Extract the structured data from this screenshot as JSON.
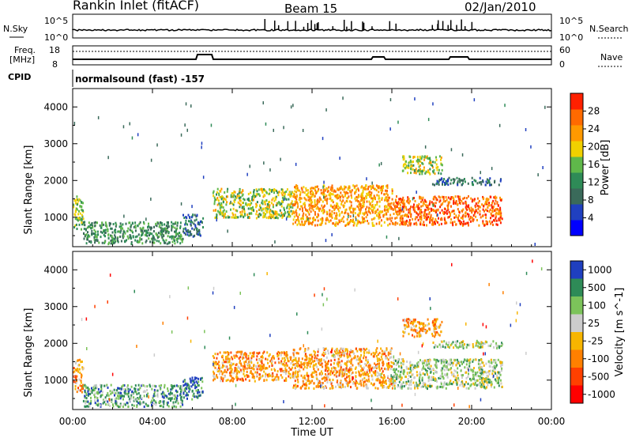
{
  "header": {
    "station": "Rankin Inlet (fitACF)",
    "beam": "Beam 15",
    "date": "02/Jan/2010"
  },
  "noise_panel": {
    "left_label": "N.Sky",
    "right_label": "N.Search",
    "left_ticks": [
      "10^5",
      "10^0"
    ],
    "right_ticks": [
      "10^5",
      "10^0"
    ]
  },
  "freq_panel": {
    "left_label_1": "Freq.",
    "left_label_2": "[MHz]",
    "right_label": "Nave",
    "left_ticks": [
      "18",
      "8"
    ],
    "right_ticks": [
      "60",
      "0"
    ],
    "cpid_label": "CPID",
    "cpid_text": "normalsound (fast) -157"
  },
  "panels": {
    "ylabel": "Slant Range [km]",
    "y_ticks": [
      "1000",
      "2000",
      "3000",
      "4000"
    ],
    "x_ticks": [
      "00:00",
      "04:00",
      "08:00",
      "12:00",
      "16:00",
      "20:00",
      "00:00"
    ],
    "xlabel": "Time UT"
  },
  "power_colorbar": {
    "label": "Power [dB]",
    "ticks": [
      "4",
      "8",
      "12",
      "16",
      "20",
      "24",
      "28"
    ],
    "colors": [
      "#0000ff",
      "#2040c0",
      "#3a6a5a",
      "#2e8b57",
      "#5fb84a",
      "#f0d000",
      "#ff9900",
      "#ff6a00",
      "#ff2000"
    ]
  },
  "velocity_colorbar": {
    "label": "Velocity [m s^-1]",
    "ticks": [
      "1000",
      "500",
      "100",
      "25",
      "-25",
      "-100",
      "-500",
      "-1000"
    ],
    "colors": [
      "#1f3fbf",
      "#2e8b57",
      "#7cc35a",
      "#cccccc",
      "#f7b500",
      "#ff8000",
      "#ff4000",
      "#ff0000"
    ]
  },
  "chart_data": {
    "type": "heatmap",
    "time_range_hours": [
      0,
      24
    ],
    "range_km": [
      200,
      4500
    ],
    "echo_regions": [
      {
        "t0": 0.0,
        "t1": 0.5,
        "r0": 700,
        "r1": 1600,
        "power_db": 18,
        "velocity": -100
      },
      {
        "t0": 0.5,
        "t1": 5.5,
        "r0": 300,
        "r1": 900,
        "power_db": 14,
        "velocity": 100
      },
      {
        "t0": 5.5,
        "t1": 6.5,
        "r0": 500,
        "r1": 1100,
        "power_db": 10,
        "velocity": 500
      },
      {
        "t0": 7.0,
        "t1": 11.0,
        "r0": 1000,
        "r1": 1800,
        "power_db": 20,
        "velocity": -100
      },
      {
        "t0": 11.0,
        "t1": 16.0,
        "r0": 800,
        "r1": 1900,
        "power_db": 26,
        "velocity": -100
      },
      {
        "t0": 16.0,
        "t1": 21.5,
        "r0": 800,
        "r1": 1600,
        "power_db": 30,
        "velocity": 25
      },
      {
        "t0": 16.5,
        "t1": 18.5,
        "r0": 2200,
        "r1": 2700,
        "power_db": 20,
        "velocity": -100
      },
      {
        "t0": 18.0,
        "t1": 21.5,
        "r0": 1900,
        "r1": 2100,
        "power_db": 10,
        "velocity": 25
      }
    ]
  }
}
